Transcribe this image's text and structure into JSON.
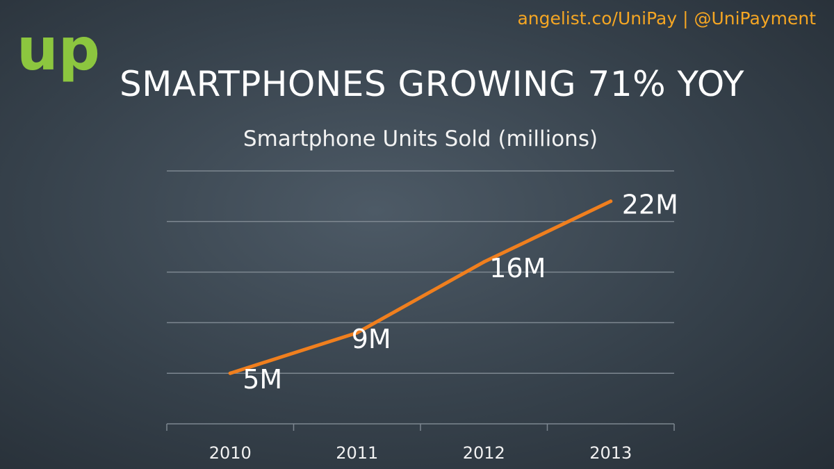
{
  "header": {
    "links": "angelist.co/UniPay | @UniPayment"
  },
  "logo": {
    "text": "up",
    "color": "#8cc63f"
  },
  "slide": {
    "title": "SMARTPHONES GROWING 71% YOY"
  },
  "colors": {
    "line": "#f07f1e",
    "grid": "#7d8790",
    "text": "#ffffff",
    "accent": "#f5a623"
  },
  "chart_data": {
    "type": "line",
    "title": "Smartphone Units Sold (millions)",
    "xlabel": "",
    "ylabel": "",
    "categories": [
      "2010",
      "2011",
      "2012",
      "2013"
    ],
    "series": [
      {
        "values": [
          5,
          9,
          16,
          22
        ],
        "labels": [
          "5M",
          "9M",
          "16M",
          "22M"
        ]
      }
    ],
    "ylim": [
      0,
      25
    ],
    "grid": true,
    "legend": "none"
  }
}
